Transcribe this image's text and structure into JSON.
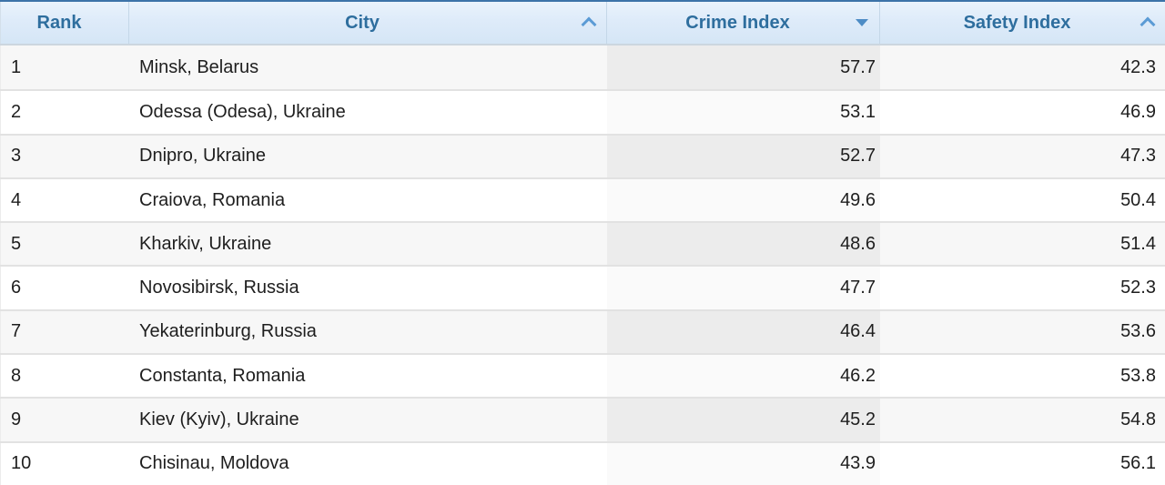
{
  "table": {
    "columns": [
      {
        "label": "Rank",
        "sort": "none"
      },
      {
        "label": "City",
        "sort": "asc"
      },
      {
        "label": "Crime Index",
        "sort": "desc"
      },
      {
        "label": "Safety Index",
        "sort": "asc"
      }
    ],
    "rows": [
      {
        "rank": "1",
        "city": "Minsk, Belarus",
        "crime_index": "57.7",
        "safety_index": "42.3"
      },
      {
        "rank": "2",
        "city": "Odessa (Odesa), Ukraine",
        "crime_index": "53.1",
        "safety_index": "46.9"
      },
      {
        "rank": "3",
        "city": "Dnipro, Ukraine",
        "crime_index": "52.7",
        "safety_index": "47.3"
      },
      {
        "rank": "4",
        "city": "Craiova, Romania",
        "crime_index": "49.6",
        "safety_index": "50.4"
      },
      {
        "rank": "5",
        "city": "Kharkiv, Ukraine",
        "crime_index": "48.6",
        "safety_index": "51.4"
      },
      {
        "rank": "6",
        "city": "Novosibirsk, Russia",
        "crime_index": "47.7",
        "safety_index": "52.3"
      },
      {
        "rank": "7",
        "city": "Yekaterinburg, Russia",
        "crime_index": "46.4",
        "safety_index": "53.6"
      },
      {
        "rank": "8",
        "city": "Constanta, Romania",
        "crime_index": "46.2",
        "safety_index": "53.8"
      },
      {
        "rank": "9",
        "city": "Kiev (Kyiv), Ukraine",
        "crime_index": "45.2",
        "safety_index": "54.8"
      },
      {
        "rank": "10",
        "city": "Chisinau, Moldova",
        "crime_index": "43.9",
        "safety_index": "56.1"
      }
    ]
  },
  "colors": {
    "header_top_border": "#3c73a9",
    "header_text": "#2e6e9e",
    "header_gradient_top": "#e9f3fc",
    "header_gradient_bottom": "#d5e6f6",
    "sort_icon": "#5b9bd5",
    "sorted_triangle": "#4d8cc5",
    "row_odd": "#f7f7f7",
    "row_even": "#ffffff",
    "sorted_col_odd": "#ececec",
    "sorted_col_even": "#fafafa",
    "row_separator": "#e2e2e2",
    "body_text": "#1e1e1e"
  }
}
